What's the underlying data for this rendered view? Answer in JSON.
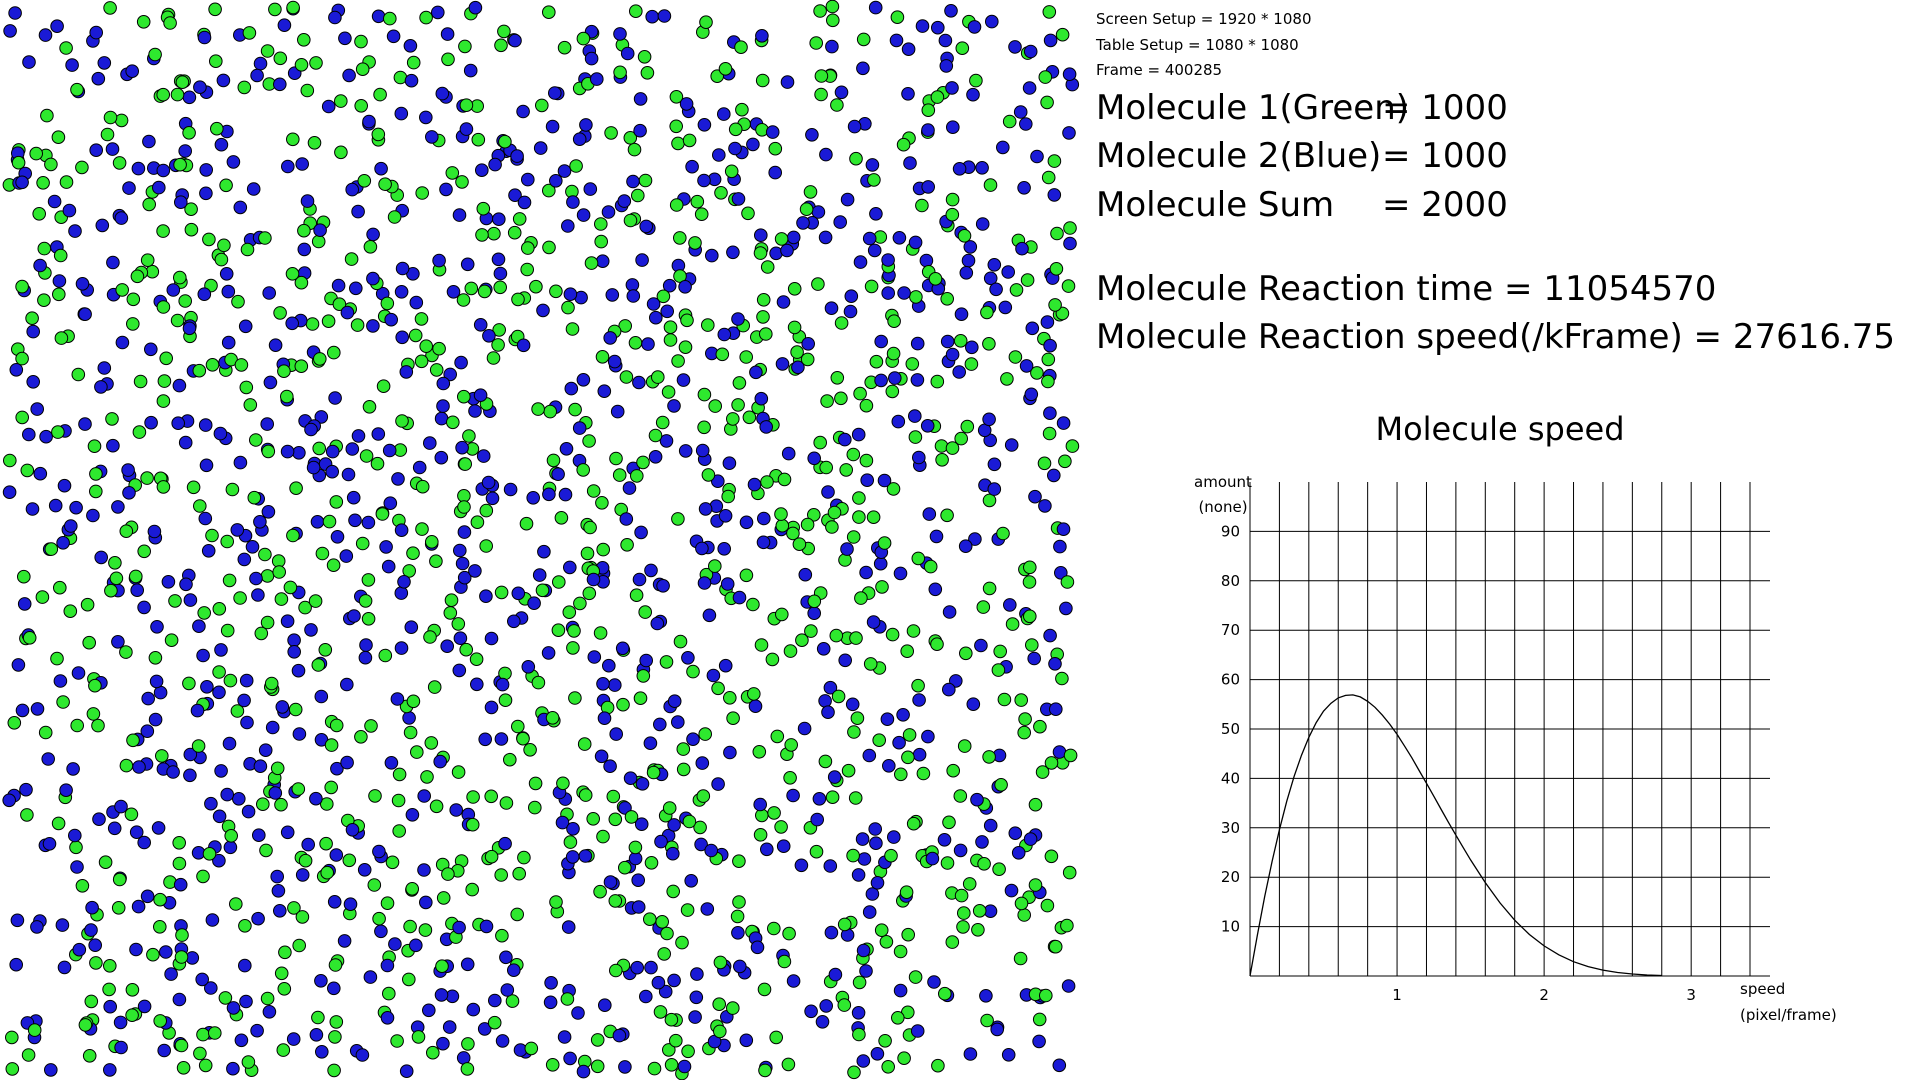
{
  "info": {
    "screen_setup": "Screen Setup = 1920 * 1080",
    "table_setup": "Table Setup = 1080 * 1080",
    "frame": "Frame = 400285",
    "molecule1_label": "Molecule 1(Green)",
    "molecule1_value": "= 1000",
    "molecule2_label": "Molecule 2(Blue)",
    "molecule2_value": "= 1000",
    "molecule_sum_label": "Molecule Sum",
    "molecule_sum_value": "= 2000",
    "reaction_time": "Molecule Reaction time = 11054570",
    "reaction_speed": "Molecule Reaction speed(/kFrame) = 27616.75"
  },
  "simulation": {
    "green_count": 1000,
    "blue_count": 1000,
    "colors": {
      "green": "#2ee82e",
      "blue": "#1a1ad6",
      "outline": "#000000"
    }
  },
  "chart_data": {
    "type": "line",
    "title": "Molecule speed",
    "ylabel_line1": "amount",
    "ylabel_line2": "(none)",
    "xlabel_line1": "speed",
    "xlabel_line2": "(pixel/frame)",
    "xlim": [
      0,
      3.4
    ],
    "ylim": [
      0,
      100
    ],
    "y_ticks": [
      10,
      20,
      30,
      40,
      50,
      60,
      70,
      80,
      90
    ],
    "x_ticks": [
      1,
      2,
      3
    ],
    "grid": true,
    "series": [
      {
        "x": [
          0,
          0.05,
          0.1,
          0.15,
          0.2,
          0.25,
          0.3,
          0.35,
          0.4,
          0.45,
          0.5,
          0.55,
          0.6,
          0.65,
          0.7,
          0.75,
          0.8,
          0.85,
          0.9,
          0.95,
          1.0,
          1.05,
          1.1,
          1.15,
          1.2,
          1.25,
          1.3,
          1.35,
          1.4,
          1.45,
          1.5,
          1.6,
          1.7,
          1.8,
          1.9,
          2.0,
          2.1,
          2.2,
          2.3,
          2.4,
          2.5,
          2.6,
          2.7,
          2.8
        ],
        "y": [
          0,
          8.3,
          16.1,
          23.2,
          29.6,
          35.4,
          40.4,
          44.7,
          48.3,
          51.3,
          53.6,
          55.2,
          56.3,
          56.8,
          56.9,
          56.5,
          55.6,
          54.4,
          52.8,
          51.0,
          48.9,
          46.6,
          44.2,
          41.6,
          39.0,
          36.4,
          33.7,
          31.1,
          28.5,
          26.0,
          23.5,
          18.9,
          14.8,
          11.3,
          8.4,
          6.1,
          4.3,
          2.9,
          1.9,
          1.2,
          0.7,
          0.4,
          0.2,
          0.1
        ]
      }
    ]
  }
}
